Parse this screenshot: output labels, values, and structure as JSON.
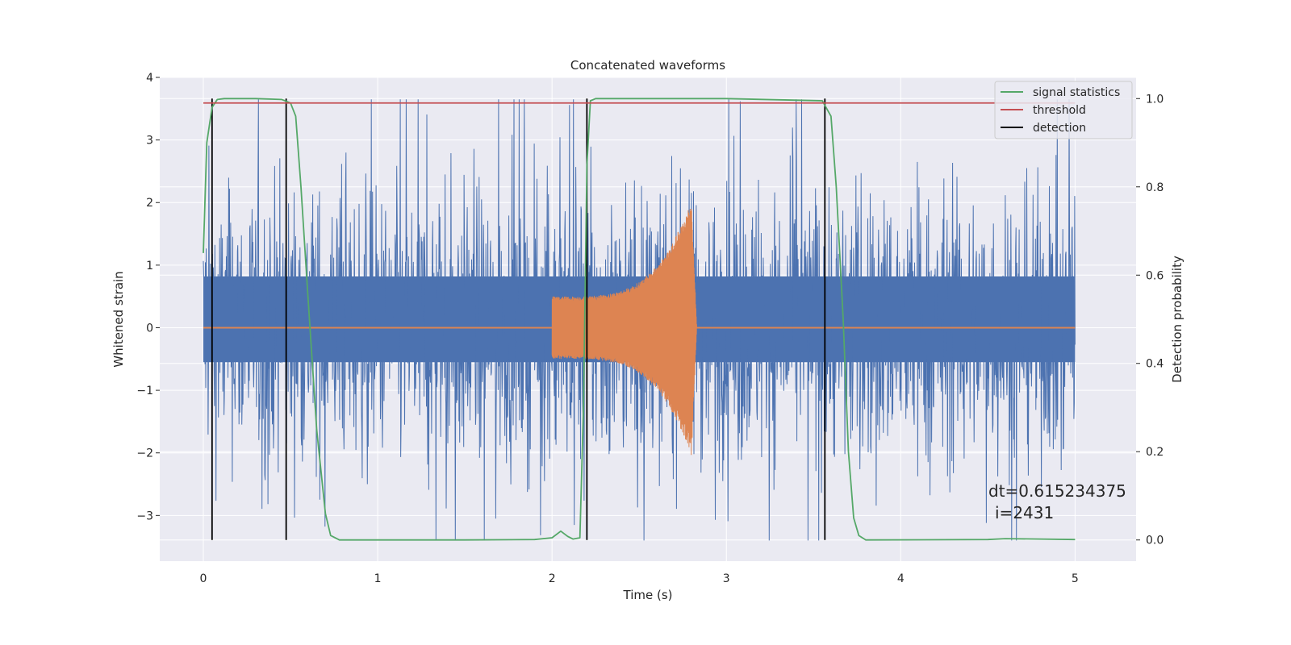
{
  "chart_data": {
    "type": "line",
    "title": "Concatenated waveforms",
    "xlabel": "Time (s)",
    "ylabel": "Whitened strain",
    "y2label": "Detection probability",
    "xlim": [
      -0.25,
      5.35
    ],
    "ylim": [
      -3.73,
      4.0
    ],
    "y2lim": [
      -0.048,
      1.048
    ],
    "xticks": [
      0,
      1,
      2,
      3,
      4,
      5
    ],
    "yticks": [
      -3,
      -2,
      -1,
      0,
      1,
      2,
      3,
      4
    ],
    "y2ticks": [
      0.0,
      0.2,
      0.4,
      0.6,
      0.8,
      1.0
    ],
    "grid": true,
    "legend_position": "top-right",
    "colors": {
      "background": "#eaeaf2",
      "noise": "#4c72b0",
      "injection": "#dd8452",
      "signal_statistics": "#55a868",
      "threshold": "#c44e52",
      "detection": "#000000"
    },
    "legend": [
      {
        "label": "signal statistics",
        "color": "#55a868"
      },
      {
        "label": "threshold",
        "color": "#c44e52"
      },
      {
        "label": "detection",
        "color": "#000000"
      }
    ],
    "series": [
      {
        "name": "signal statistics",
        "axis": "right",
        "x": [
          0.0,
          0.02,
          0.05,
          0.08,
          0.12,
          0.3,
          0.45,
          0.5,
          0.53,
          0.56,
          0.6,
          0.65,
          0.7,
          0.73,
          0.78,
          1.0,
          1.5,
          1.9,
          2.0,
          2.05,
          2.09,
          2.12,
          2.16,
          2.18,
          2.2,
          2.22,
          2.25,
          2.4,
          3.0,
          3.55,
          3.6,
          3.63,
          3.67,
          3.7,
          3.73,
          3.76,
          3.8,
          4.5,
          4.6,
          5.0
        ],
        "y": [
          0.65,
          0.9,
          0.98,
          0.998,
          1.0,
          1.0,
          0.998,
          0.99,
          0.96,
          0.8,
          0.55,
          0.25,
          0.06,
          0.01,
          0.0,
          0.0,
          0.0,
          0.001,
          0.005,
          0.02,
          0.008,
          0.002,
          0.005,
          0.3,
          0.85,
          0.995,
          1.0,
          1.0,
          1.0,
          0.995,
          0.96,
          0.8,
          0.5,
          0.2,
          0.05,
          0.01,
          0.0,
          0.001,
          0.003,
          0.001
        ]
      },
      {
        "name": "threshold",
        "axis": "right",
        "x": [
          0.0,
          5.0
        ],
        "y": [
          0.99,
          0.99
        ]
      },
      {
        "name": "detection",
        "axis": "right",
        "x": [
          0.05,
          0.475,
          2.2,
          3.565
        ],
        "y_range": [
          0.0,
          1.0
        ]
      }
    ],
    "noise": {
      "x_range": [
        0.0,
        5.0
      ],
      "band": [
        -0.55,
        0.82
      ],
      "min": -3.4,
      "max": 3.65
    },
    "injection": {
      "x_range": [
        2.0,
        2.83
      ],
      "amplitude_start": 0.5,
      "amplitude_peak": 2.05,
      "peak_x": 2.8
    },
    "annotation": {
      "line1": "dt=0.615234375",
      "line2": "i=2431"
    }
  }
}
